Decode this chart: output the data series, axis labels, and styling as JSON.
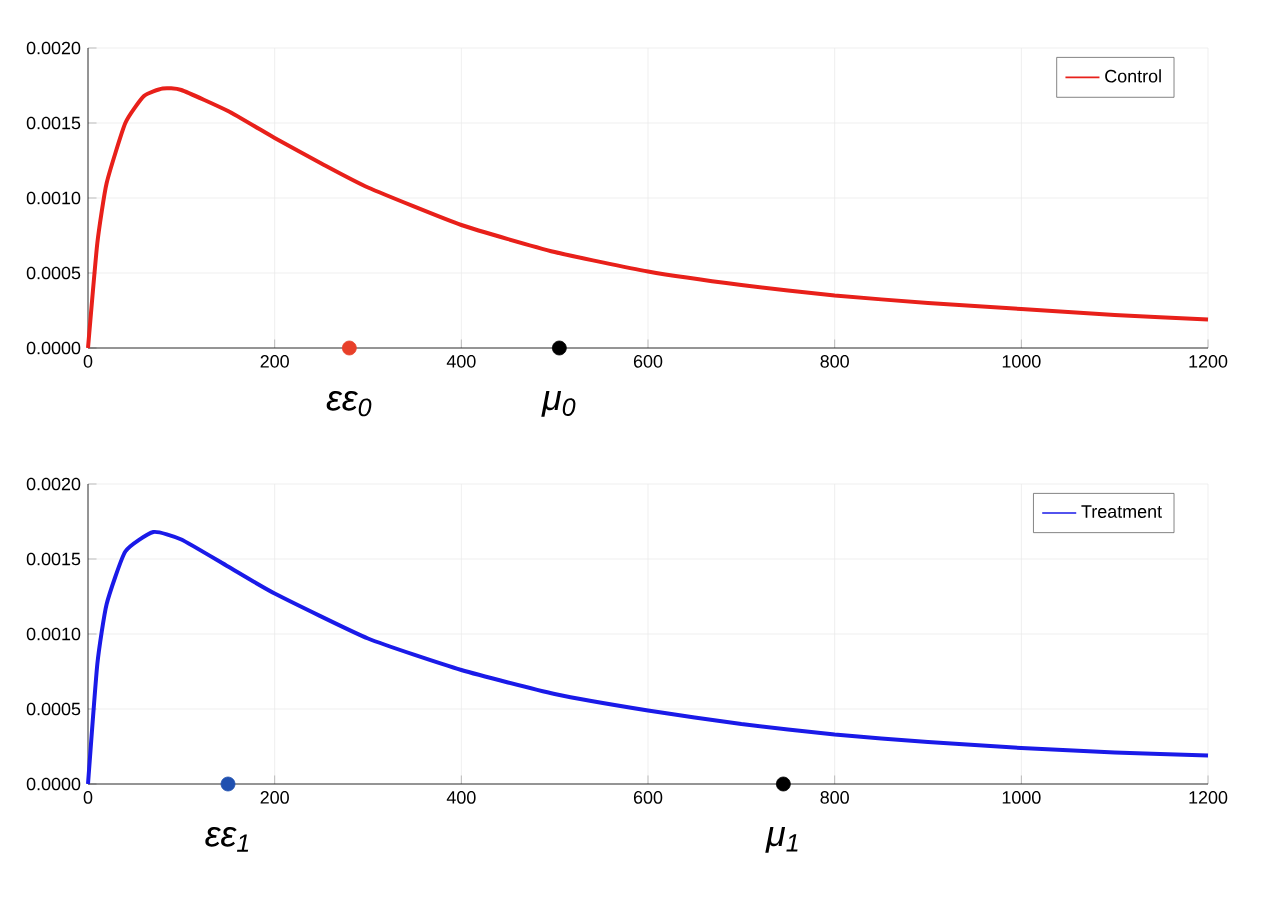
{
  "chart_data": [
    {
      "type": "line",
      "xlim": [
        0,
        1200
      ],
      "ylim": [
        0,
        0.002
      ],
      "xticks": [
        0,
        200,
        400,
        600,
        800,
        1000,
        1200
      ],
      "yticks": [
        {
          "value": 0,
          "label": "0.0000"
        },
        {
          "value": 0.0005,
          "label": "0.0005"
        },
        {
          "value": 0.001,
          "label": "0.0010"
        },
        {
          "value": 0.0015,
          "label": "0.0015"
        },
        {
          "value": 0.002,
          "label": "0.0020"
        }
      ],
      "grid": true,
      "legend": "top right",
      "marker": "none",
      "line_style": "solid",
      "series": [
        {
          "name": "Control",
          "color": "#e8201a",
          "x": [
            0,
            10,
            20,
            40,
            60,
            80,
            100,
            150,
            200,
            250,
            300,
            400,
            500,
            600,
            700,
            800,
            900,
            1000,
            1100,
            1200
          ],
          "values": [
            0,
            0.0007,
            0.0011,
            0.0015,
            0.00168,
            0.00173,
            0.00172,
            0.00158,
            0.0014,
            0.00123,
            0.00107,
            0.00082,
            0.00064,
            0.00051,
            0.00042,
            0.00035,
            0.0003,
            0.00026,
            0.00022,
            0.00019
          ]
        },
        {
          "type": "scatter",
          "marker": "circle",
          "color": "#e8402a",
          "x": [
            280
          ],
          "values": [
            0
          ]
        },
        {
          "type": "scatter",
          "marker": "circle",
          "color": "#000000",
          "x": [
            505
          ],
          "values": [
            0
          ]
        }
      ],
      "annotations": [
        {
          "text": "εε$_{0}$",
          "x": 280,
          "y": 0
        },
        {
          "text": "μ$_{0}$",
          "x": 505,
          "y": 0
        }
      ]
    },
    {
      "type": "line",
      "xlim": [
        0,
        1200
      ],
      "ylim": [
        0,
        0.002
      ],
      "xticks": [
        0,
        200,
        400,
        600,
        800,
        1000,
        1200
      ],
      "yticks": [
        {
          "value": 0,
          "label": "0.0000"
        },
        {
          "value": 0.0005,
          "label": "0.0005"
        },
        {
          "value": 0.001,
          "label": "0.0010"
        },
        {
          "value": 0.0015,
          "label": "0.0015"
        },
        {
          "value": 0.002,
          "label": "0.0020"
        }
      ],
      "grid": true,
      "legend": "top right",
      "marker": "none",
      "line_style": "solid",
      "series": [
        {
          "name": "Treatment",
          "color": "#1a1ae8",
          "x": [
            0,
            10,
            20,
            40,
            70,
            100,
            150,
            200,
            300,
            400,
            500,
            600,
            700,
            800,
            900,
            1000,
            1100,
            1200
          ],
          "values": [
            0,
            0.0008,
            0.0012,
            0.00155,
            0.00168,
            0.00163,
            0.00145,
            0.00127,
            0.00097,
            0.00076,
            0.0006,
            0.00049,
            0.0004,
            0.00033,
            0.00028,
            0.00024,
            0.00021,
            0.00019
          ]
        },
        {
          "type": "scatter",
          "marker": "circle",
          "color": "#2050b0",
          "x": [
            150
          ],
          "values": [
            0
          ]
        },
        {
          "type": "scatter",
          "marker": "circle",
          "color": "#000000",
          "x": [
            745
          ],
          "values": [
            0
          ]
        }
      ],
      "annotations": [
        {
          "text": "εε$_{1}$",
          "x": 150,
          "y": 0
        },
        {
          "text": "μ$_{1}$",
          "x": 745,
          "y": 0
        }
      ]
    }
  ]
}
